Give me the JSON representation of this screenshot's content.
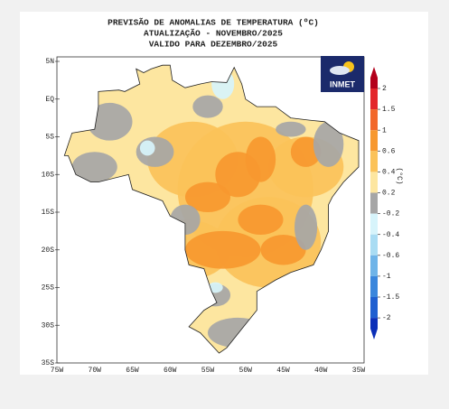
{
  "header": {
    "title": "PREVISÃO DE ANOMALIAS DE TEMPERATURA (ºC)",
    "update": "ATUALIZAÇÃO - NOVEMBRO/2025",
    "valid": "VALIDO PARA DEZEMBRO/2025"
  },
  "map": {
    "lat_labels": [
      "5N",
      "EQ",
      "5S",
      "10S",
      "15S",
      "20S",
      "25S",
      "30S",
      "35S"
    ],
    "lon_labels": [
      "75W",
      "70W",
      "65W",
      "60W",
      "55W",
      "50W",
      "45W",
      "40W",
      "35W"
    ],
    "logo": "INMET"
  },
  "colorbar": {
    "unit": "(°C)",
    "ticks": [
      2,
      1.5,
      1,
      0.6,
      0.4,
      0.2,
      -0.2,
      -0.4,
      -0.6,
      -1,
      -1.5,
      -2
    ],
    "colors": [
      "#b3001b",
      "#e3262b",
      "#f2672a",
      "#f7982f",
      "#fbc259",
      "#fde6a0",
      "#a6a6a6",
      "#d7f4fb",
      "#a9dcf3",
      "#6fb4e8",
      "#3a86dc",
      "#1f5fd0",
      "#0b2fb8"
    ]
  }
}
